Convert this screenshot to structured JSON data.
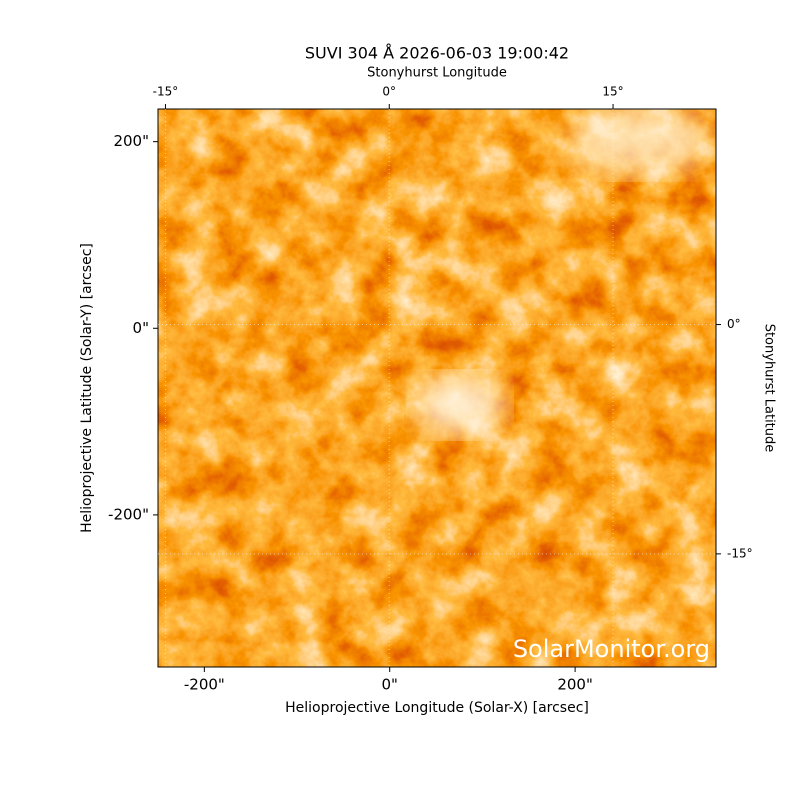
{
  "chart_data": {
    "type": "image",
    "title": "SUVI 304 Å 2026-06-03 19:00:42",
    "xlabel": "Helioprojective Longitude (Solar-X) [arcsec]",
    "ylabel": "Helioprojective Latitude (Solar-Y) [arcsec]",
    "x2label": "Stonyhurst Longitude",
    "y2label": "Stonyhurst Latitude",
    "watermark": "SolarMonitor.org",
    "xlim": [
      -250,
      352
    ],
    "ylim": [
      -363,
      235
    ],
    "xticks": [
      {
        "value": -200,
        "label": "-200\""
      },
      {
        "value": 0,
        "label": "0\""
      },
      {
        "value": 200,
        "label": "200\""
      }
    ],
    "yticks": [
      {
        "value": -200,
        "label": "-200\""
      },
      {
        "value": 0,
        "label": "0\""
      },
      {
        "value": 200,
        "label": "200\""
      }
    ],
    "x2lim": [
      -15.5,
      21.9
    ],
    "x2ticks": [
      {
        "value": -15,
        "label": "-15°"
      },
      {
        "value": 0,
        "label": "0°"
      },
      {
        "value": 15,
        "label": "15°"
      }
    ],
    "y2lim": [
      -22.4,
      14.1
    ],
    "y2ticks": [
      {
        "value": -15,
        "label": "-15°"
      },
      {
        "value": 0,
        "label": "0°"
      }
    ],
    "grid": true
  }
}
